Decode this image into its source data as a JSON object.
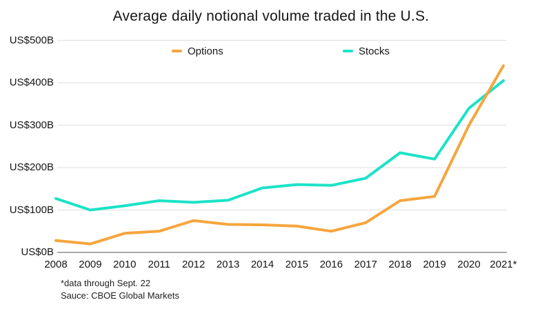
{
  "chart_data": {
    "type": "line",
    "title": "Average daily notional volume traded in the U.S.",
    "x_categories": [
      "2008",
      "2009",
      "2010",
      "2011",
      "2012",
      "2013",
      "2014",
      "2015",
      "2016",
      "2017",
      "2018",
      "2019",
      "2020",
      "2021*"
    ],
    "y_tick_labels_top_to_bottom": [
      "US$500B",
      "US$400B",
      "US$300B",
      "US$200B",
      "US$100B",
      "US$0B"
    ],
    "y_tick_values_top_to_bottom": [
      500,
      400,
      300,
      200,
      100,
      0
    ],
    "ylim": [
      0,
      500
    ],
    "y_unit": "US$ billions (average daily notional volume)",
    "grid": "horizontal",
    "legend_position": "top",
    "series": [
      {
        "name": "Stocks",
        "color": "#1CE2C7",
        "values": [
          127,
          100,
          110,
          122,
          118,
          123,
          152,
          160,
          158,
          175,
          235,
          220,
          340,
          405
        ]
      },
      {
        "name": "Options",
        "color": "#F5A53D",
        "values": [
          28,
          20,
          45,
          50,
          75,
          66,
          65,
          62,
          50,
          70,
          122,
          132,
          300,
          440
        ]
      }
    ]
  },
  "legend": {
    "options_label": "Options",
    "stocks_label": "Stocks"
  },
  "footnotes": {
    "data_range": "*data through Sept. 22",
    "source": "Sauce: CBOE Global Markets"
  },
  "colors": {
    "gridline": "#E3E3E3",
    "zero_axis_line": "#A9A9A9",
    "text": "#151515",
    "background": "#FFFFFF"
  }
}
